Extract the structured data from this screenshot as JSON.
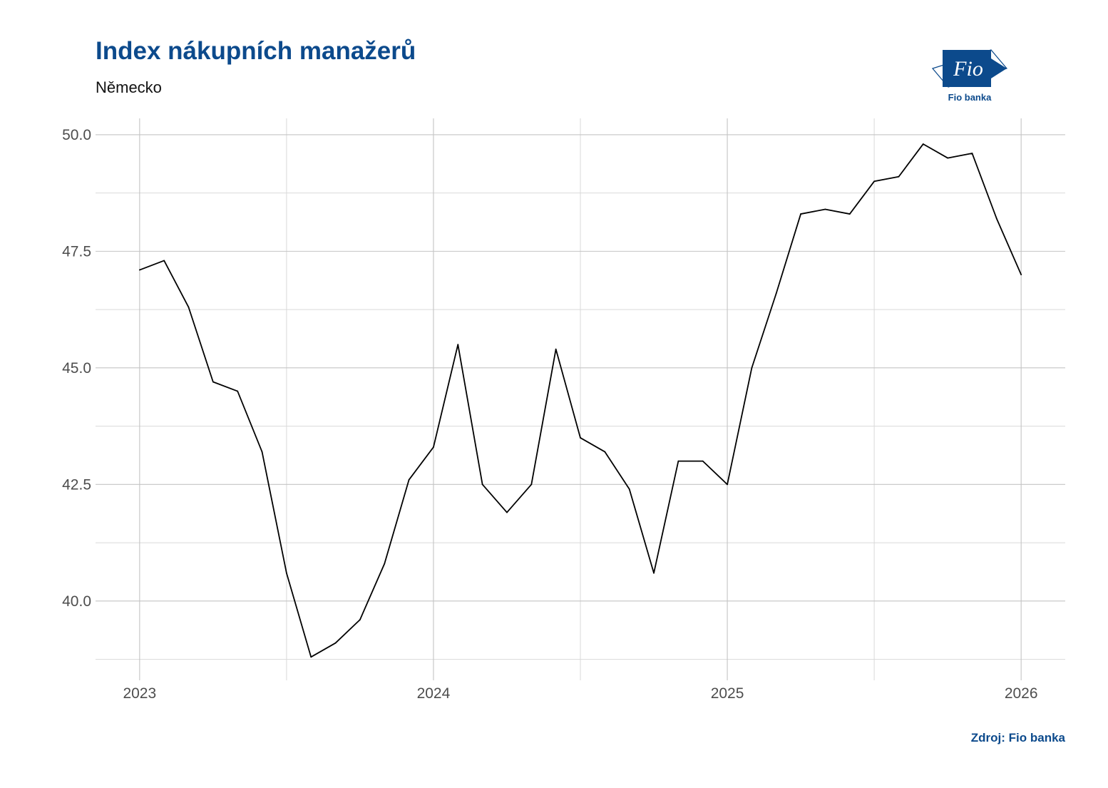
{
  "header": {
    "title": "Index nákupních manažerů",
    "subtitle": "Německo"
  },
  "logo": {
    "text": "Fio",
    "caption": "Fio banka",
    "color": "#0c4a8c"
  },
  "footer": {
    "source": "Zdroj: Fio banka"
  },
  "chart_data": {
    "type": "line",
    "title": "Index nákupních manažerů",
    "subtitle": "Německo",
    "xlabel": "",
    "ylabel": "",
    "x_ticks": [
      {
        "label": "2023",
        "value": 2023.0
      },
      {
        "label": "2024",
        "value": 2024.0
      },
      {
        "label": "2025",
        "value": 2025.0
      },
      {
        "label": "2026",
        "value": 2026.0
      }
    ],
    "y_ticks": [
      {
        "label": "40.0",
        "value": 40.0
      },
      {
        "label": "42.5",
        "value": 42.5
      },
      {
        "label": "45.0",
        "value": 45.0
      },
      {
        "label": "47.5",
        "value": 47.5
      },
      {
        "label": "50.0",
        "value": 50.0
      }
    ],
    "xlim": [
      2022.85,
      2026.15
    ],
    "ylim": [
      38.3,
      50.35
    ],
    "grid": true,
    "line_color": "#000000",
    "series": [
      {
        "values": [
          {
            "x": "2023-01",
            "y": 47.1
          },
          {
            "x": "2023-02",
            "y": 47.3
          },
          {
            "x": "2023-03",
            "y": 46.3
          },
          {
            "x": "2023-04",
            "y": 44.7
          },
          {
            "x": "2023-05",
            "y": 44.5
          },
          {
            "x": "2023-06",
            "y": 43.2
          },
          {
            "x": "2023-07",
            "y": 40.6
          },
          {
            "x": "2023-08",
            "y": 38.8
          },
          {
            "x": "2023-09",
            "y": 39.1
          },
          {
            "x": "2023-10",
            "y": 39.6
          },
          {
            "x": "2023-11",
            "y": 40.8
          },
          {
            "x": "2023-12",
            "y": 42.6
          },
          {
            "x": "2024-01",
            "y": 43.3
          },
          {
            "x": "2024-02",
            "y": 45.5
          },
          {
            "x": "2024-03",
            "y": 42.5
          },
          {
            "x": "2024-04",
            "y": 41.9
          },
          {
            "x": "2024-05",
            "y": 42.5
          },
          {
            "x": "2024-06",
            "y": 45.4
          },
          {
            "x": "2024-07",
            "y": 43.5
          },
          {
            "x": "2024-08",
            "y": 43.2
          },
          {
            "x": "2024-09",
            "y": 42.4
          },
          {
            "x": "2024-10",
            "y": 40.6
          },
          {
            "x": "2024-11",
            "y": 43.0
          },
          {
            "x": "2024-12",
            "y": 43.0
          },
          {
            "x": "2025-01",
            "y": 42.5
          },
          {
            "x": "2025-02",
            "y": 45.0
          },
          {
            "x": "2025-03",
            "y": 46.6
          },
          {
            "x": "2025-04",
            "y": 48.3
          },
          {
            "x": "2025-05",
            "y": 48.4
          },
          {
            "x": "2025-06",
            "y": 48.3
          },
          {
            "x": "2025-07",
            "y": 49.0
          },
          {
            "x": "2025-08",
            "y": 49.1
          },
          {
            "x": "2025-09",
            "y": 49.8
          },
          {
            "x": "2025-10",
            "y": 49.5
          },
          {
            "x": "2025-11",
            "y": 49.6
          },
          {
            "x": "2025-12",
            "y": 48.2
          },
          {
            "x": "2026-01",
            "y": 47.0
          }
        ]
      }
    ]
  }
}
